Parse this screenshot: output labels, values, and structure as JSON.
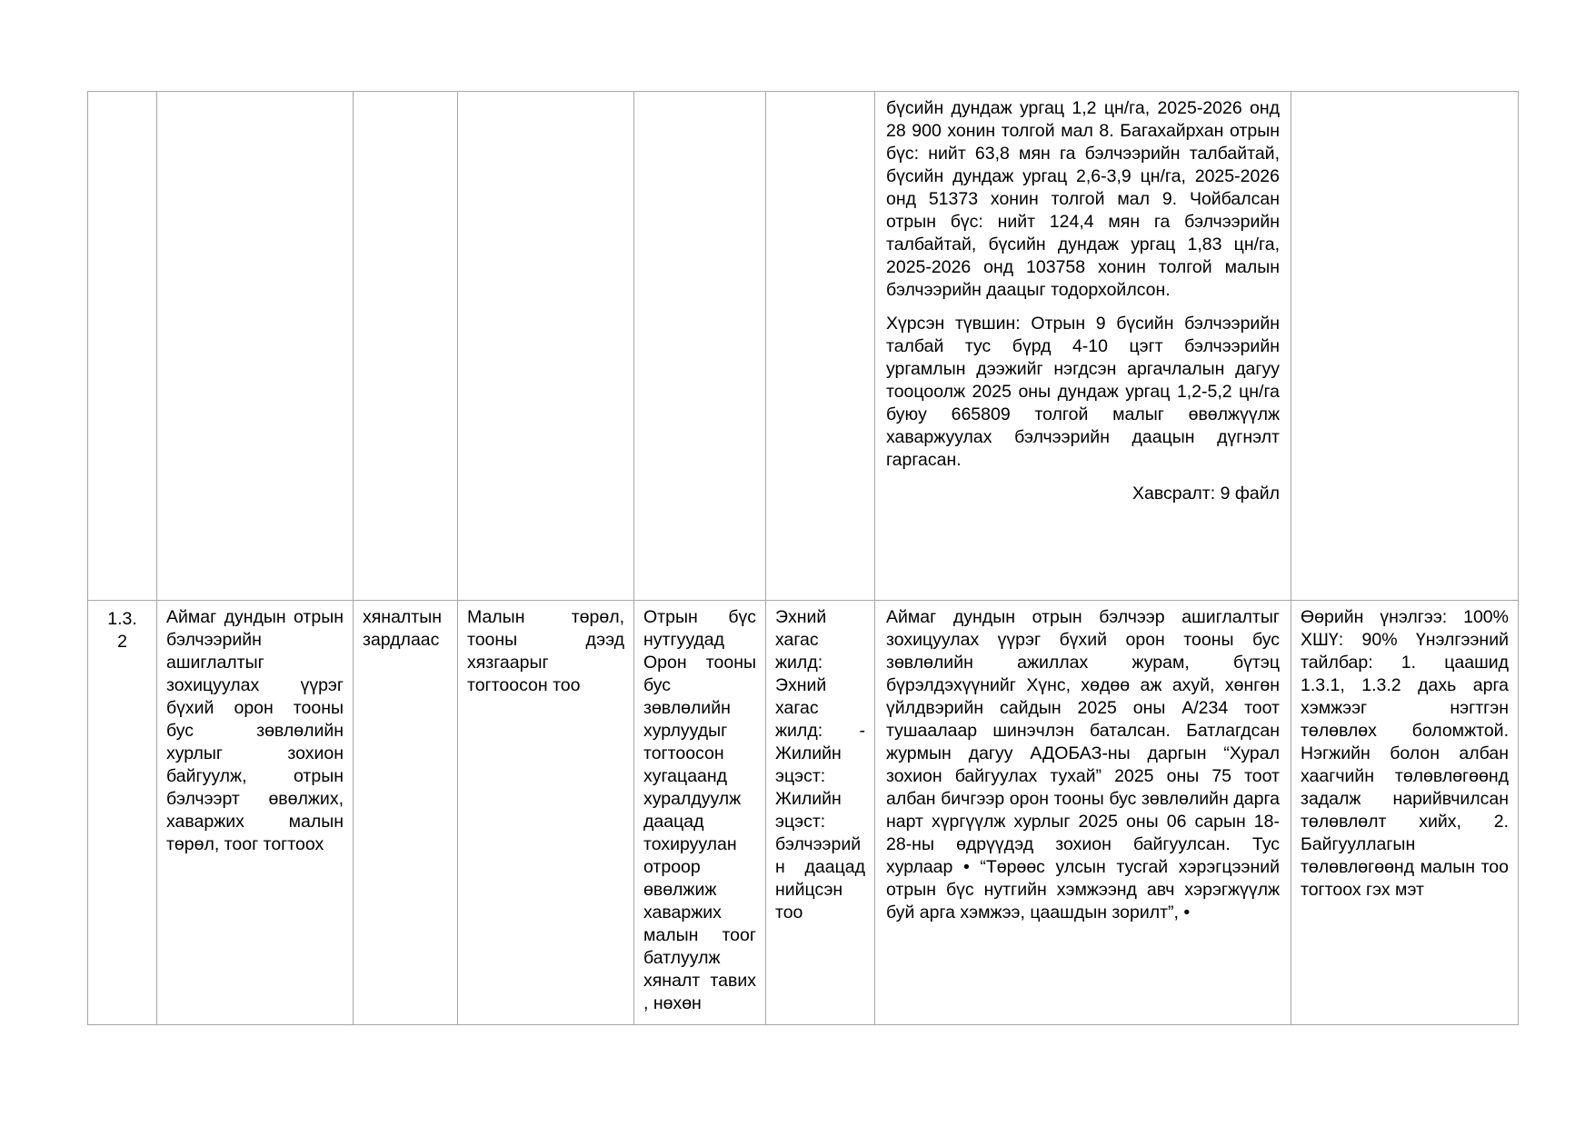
{
  "colors": {
    "table_border": "#a6a6a6",
    "text": "#000000",
    "page_background": "#ffffff"
  },
  "table": {
    "continuation_row": {
      "result_p1": "бүсийн дундаж ургац 1,2 цн/га, 2025-2026 онд 28 900 хонин толгой мал 8. Багахайрхан отрын бүс: нийт 63,8 мян га бэлчээрийн талбайтай, бүсийн дундаж ургац 2,6-3,9 цн/га, 2025-2026 онд 51373 хонин толгой мал 9. Чойбалсан отрын бүс: нийт 124,4 мян га бэлчээрийн талбайтай, бүсийн дундаж ургац 1,83 цн/га, 2025-2026 онд 103758 хонин толгой малын бэлчээрийн даацыг тодорхойлсон.",
      "result_p2": "Хүрсэн түвшин: Отрын 9 бүсийн бэлчээрийн талбай тус бүрд 4-10 цэгт бэлчээрийн ургамлын дээжийг нэгдсэн аргачлалын дагуу тооцоолж 2025 оны дундаж ургац 1,2-5,2 цн/га буюу 665809 толгой малыг өвөлжүүлж хаваржуулах бэлчээрийн даацын дүгнэлт гаргасан.",
      "attachment": "Хавсралт: 9 файл"
    },
    "task_row": {
      "index": "1.3.2",
      "activity": "Аймаг дундын отрын бэлчээрийн ашиглалтыг зохицуулах үүрэг бүхий орон тооны бус зөвлөлийн хурлыг зохион байгуулж, отрын бэлчээрт өвөлжих, хаваржих малын төрөл, тоог тогтоох",
      "funding": "хяналтын зардлаас",
      "criteria": "Малын төрөл, тооны дээд хязгаарыг тогтоосон тоо",
      "target": "Отрын бүс нутгуудад Орон тооны бус зөвлөлийн хурлуудыг тогтоосон хугацаанд хуралдуулж даацад тохируулан отроор өвөлжиж хаваржих малын тоог батлуулж хяналт тавих , нөхөн",
      "schedule": "Эхний хагас жилд: Эхний хагас жилд: - Жилийн эцэст: Жилийн эцэст: бэлчээрийн даацад нийцсэн тоо",
      "performance": "Аймаг дундын отрын бэлчээр ашиглалтыг зохицуулах үүрэг бүхий орон тооны бус зөвлөлийн ажиллах журам, бүтэц бүрэлдэхүүнийг Хүнс, хөдөө аж ахуй, хөнгөн үйлдвэрийн сайдын 2025 оны А/234 тоот тушаалаар шинэчлэн баталсан. Батлагдсан журмын дагуу АДОБАЗ-ны даргын “Хурал зохион байгуулах тухай” 2025 оны 75 тоот албан бичгээр орон тооны бус зөвлөлийн дарга нарт хүргүүлж хурлыг 2025 оны 06 сарын 18-28-ны өдрүүдэд зохион байгуулсан. Тус хурлаар • “Төрөөс улсын тусгай хэрэгцээний отрын бүс нутгийн хэмжээнд авч хэрэгжүүлж буй арга хэмжээ, цаашдын зорилт”, •",
      "evaluation": "Өөрийн үнэлгээ: 100% ХШҮ: 90% Үнэлгээний тайлбар: 1. цаашид 1.3.1, 1.3.2 дахь арга хэмжээг нэгтгэн төлөвлөх боломжтой. Нэгжийн болон албан хаагчийн төлөвлөгөөнд задалж нарийвчилсан төлөвлөлт хийх, 2. Байгууллагын төлөвлөгөөнд малын тоо тогтоох гэх мэт"
    }
  }
}
